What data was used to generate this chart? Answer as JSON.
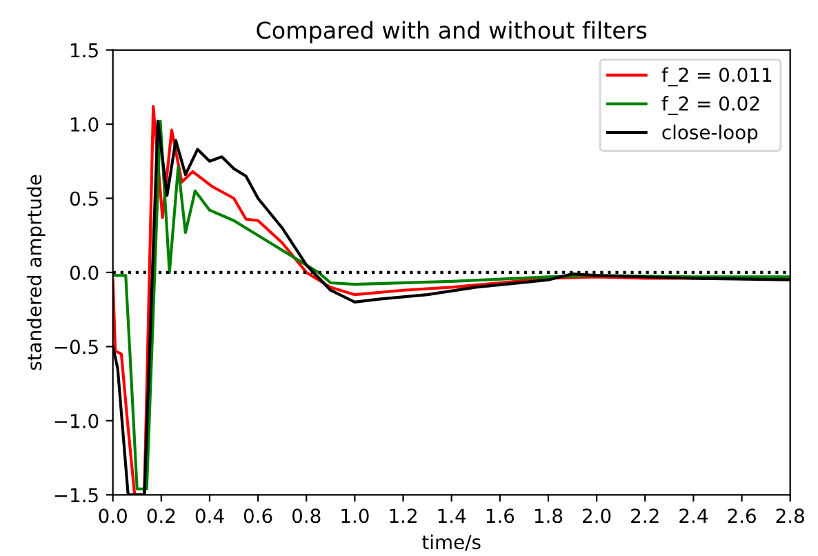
{
  "chart_data": {
    "type": "line",
    "title": "Compared with and without filters",
    "xlabel": "time/s",
    "ylabel": "standered amprtude",
    "series": [
      {
        "name": "f_2 = 0.011",
        "color": "#ff0000",
        "x": [
          0,
          0.01,
          0.035,
          0.06,
          0.09,
          0.13,
          0.167,
          0.205,
          0.243,
          0.285,
          0.33,
          0.41,
          0.5,
          0.55,
          0.6,
          0.7,
          0.8,
          0.9,
          1.0,
          1.2,
          1.4,
          1.6,
          1.8,
          2.0,
          2.2,
          2.5,
          2.8
        ],
        "values": [
          -0.05,
          -0.53,
          -0.55,
          -1.0,
          -1.5,
          -1.5,
          1.12,
          0.37,
          0.96,
          0.61,
          0.68,
          0.58,
          0.5,
          0.36,
          0.35,
          0.2,
          0.0,
          -0.1,
          -0.15,
          -0.12,
          -0.1,
          -0.07,
          -0.04,
          -0.03,
          -0.04,
          -0.04,
          -0.04
        ]
      },
      {
        "name": "f_2 = 0.02",
        "color": "#008000",
        "x": [
          0,
          0.03,
          0.053,
          0.072,
          0.1,
          0.14,
          0.196,
          0.234,
          0.27,
          0.3,
          0.34,
          0.4,
          0.5,
          0.55,
          0.65,
          0.75,
          0.85,
          0.9,
          1.0,
          1.4,
          1.8,
          2.0,
          2.4,
          2.8
        ],
        "values": [
          -0.02,
          -0.02,
          -0.02,
          -0.59,
          -1.46,
          -1.46,
          1.02,
          0.0,
          0.71,
          0.27,
          0.55,
          0.42,
          0.35,
          0.3,
          0.2,
          0.1,
          0.0,
          -0.07,
          -0.08,
          -0.06,
          -0.03,
          -0.02,
          -0.03,
          -0.03
        ]
      },
      {
        "name": "close-loop",
        "color": "#000000",
        "x": [
          0,
          0.02,
          0.063,
          0.13,
          0.186,
          0.224,
          0.26,
          0.3,
          0.35,
          0.4,
          0.45,
          0.5,
          0.55,
          0.6,
          0.7,
          0.8,
          0.9,
          1.0,
          1.1,
          1.3,
          1.5,
          1.8,
          1.9,
          2.0,
          2.4,
          2.8
        ],
        "values": [
          -0.5,
          -0.65,
          -1.5,
          -1.5,
          1.02,
          0.52,
          0.89,
          0.66,
          0.83,
          0.75,
          0.78,
          0.7,
          0.65,
          0.5,
          0.3,
          0.05,
          -0.12,
          -0.2,
          -0.18,
          -0.15,
          -0.1,
          -0.05,
          -0.01,
          -0.02,
          -0.04,
          -0.05
        ]
      }
    ],
    "ref_lines": [
      {
        "axis": "y",
        "value": 0,
        "color": "#000000",
        "line_style": "dotted"
      }
    ],
    "xlim": [
      0,
      2.8
    ],
    "ylim": [
      -1.5,
      1.5
    ],
    "xticks": [
      {
        "value": 0,
        "label": "0.0"
      },
      0.2,
      0.4,
      0.6,
      0.8,
      {
        "value": 1,
        "label": "1.0"
      },
      1.2,
      1.4,
      1.6,
      1.8,
      {
        "value": 2,
        "label": "2.0"
      },
      2.2,
      2.4,
      2.6,
      2.8
    ],
    "yticks": [
      {
        "value": -1.5,
        "label": "−1.5"
      },
      {
        "value": -1,
        "label": "−1.0"
      },
      {
        "value": -0.5,
        "label": "−0.5"
      },
      {
        "value": 0,
        "label": "0.0"
      },
      0.5,
      {
        "value": 1,
        "label": "1.0"
      },
      1.5
    ],
    "legend": "top right",
    "grid": false,
    "line_style": "solid",
    "marker": "none"
  }
}
